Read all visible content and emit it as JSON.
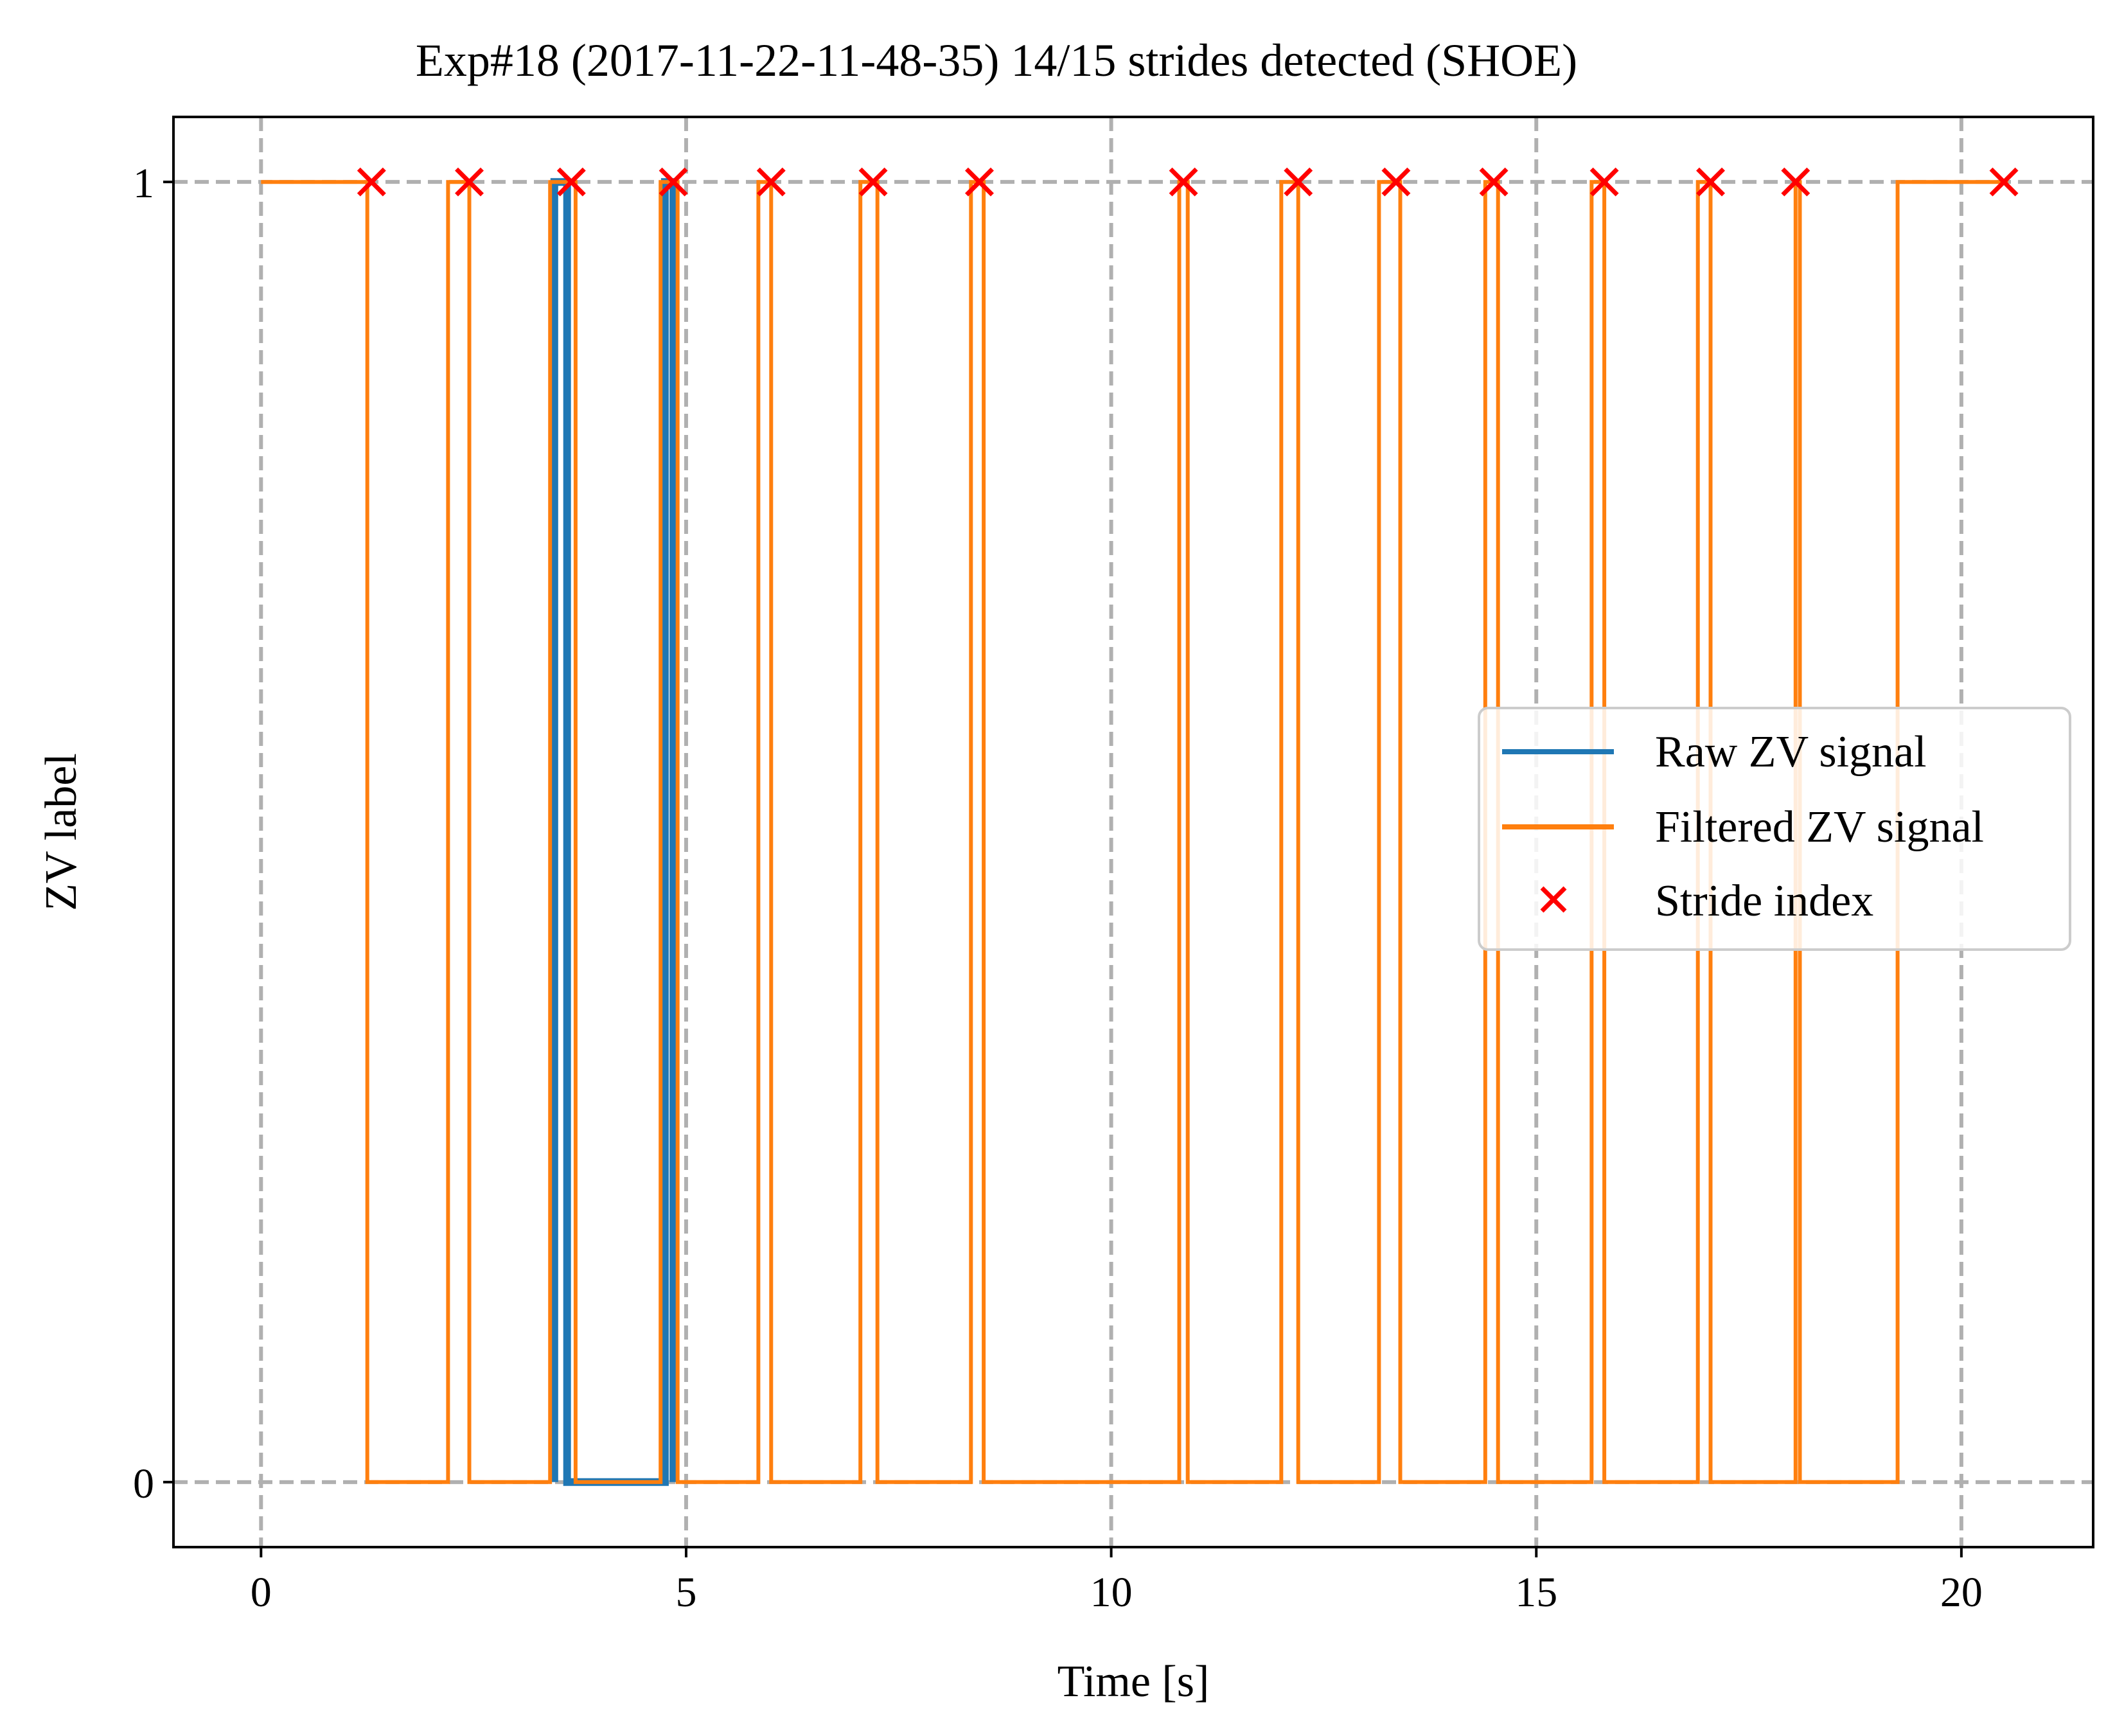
{
  "chart_data": {
    "type": "line",
    "title": "Exp#18 (2017-11-22-11-48-35) 14/15 strides detected (SHOE)",
    "xlabel": "Time [s]",
    "ylabel": "ZV label",
    "xlim": [
      -1.03,
      21.55
    ],
    "ylim": [
      -0.05,
      1.05
    ],
    "x_ticks": [
      0,
      5,
      10,
      15,
      20
    ],
    "x_tick_labels": [
      "0",
      "5",
      "10",
      "15",
      "20"
    ],
    "y_ticks": [
      0,
      1
    ],
    "y_tick_labels": [
      "0",
      "1"
    ],
    "grid": true,
    "grid_style": "dashed",
    "legend_position": "center-right",
    "series": [
      {
        "name": "Raw ZV signal",
        "kind": "step",
        "color": "#1f77b4",
        "points": [
          [
            3.45,
            0
          ],
          [
            3.45,
            1
          ],
          [
            3.6,
            1
          ],
          [
            3.6,
            0
          ],
          [
            4.75,
            0
          ],
          [
            4.75,
            1
          ],
          [
            4.85,
            1
          ],
          [
            4.85,
            0
          ]
        ]
      },
      {
        "name": "Filtered ZV signal",
        "kind": "step",
        "color": "#ff7f0e",
        "points": [
          [
            0,
            1
          ],
          [
            1.25,
            1
          ],
          [
            1.25,
            0
          ],
          [
            2.2,
            0
          ],
          [
            2.2,
            1
          ],
          [
            2.45,
            1
          ],
          [
            2.45,
            0
          ],
          [
            3.4,
            0
          ],
          [
            3.4,
            1
          ],
          [
            3.7,
            1
          ],
          [
            3.7,
            0
          ],
          [
            4.7,
            0
          ],
          [
            4.7,
            1
          ],
          [
            4.9,
            1
          ],
          [
            4.9,
            0
          ],
          [
            5.85,
            0
          ],
          [
            5.85,
            1
          ],
          [
            6.0,
            1
          ],
          [
            6.0,
            0
          ],
          [
            7.05,
            0
          ],
          [
            7.05,
            1
          ],
          [
            7.25,
            1
          ],
          [
            7.25,
            0
          ],
          [
            8.35,
            0
          ],
          [
            8.35,
            1
          ],
          [
            8.5,
            1
          ],
          [
            8.5,
            0
          ],
          [
            10.8,
            0
          ],
          [
            10.8,
            1
          ],
          [
            10.9,
            1
          ],
          [
            10.9,
            0
          ],
          [
            12.0,
            0
          ],
          [
            12.0,
            1
          ],
          [
            12.2,
            1
          ],
          [
            12.2,
            0
          ],
          [
            13.15,
            0
          ],
          [
            13.15,
            1
          ],
          [
            13.4,
            1
          ],
          [
            13.4,
            0
          ],
          [
            14.4,
            0
          ],
          [
            14.4,
            1
          ],
          [
            14.55,
            1
          ],
          [
            14.55,
            0
          ],
          [
            15.65,
            0
          ],
          [
            15.65,
            1
          ],
          [
            15.8,
            1
          ],
          [
            15.8,
            0
          ],
          [
            16.9,
            0
          ],
          [
            16.9,
            1
          ],
          [
            17.05,
            1
          ],
          [
            17.05,
            0
          ],
          [
            18.05,
            0
          ],
          [
            18.05,
            1
          ],
          [
            18.1,
            1
          ],
          [
            18.1,
            0
          ],
          [
            19.25,
            0
          ],
          [
            19.25,
            1
          ],
          [
            20.55,
            1
          ]
        ]
      },
      {
        "name": "Stride index",
        "kind": "scatter",
        "marker": "x",
        "color": "#ff0000",
        "x": [
          1.3,
          2.45,
          3.65,
          4.85,
          6.0,
          7.2,
          8.45,
          10.85,
          12.2,
          13.35,
          14.5,
          15.8,
          17.05,
          18.05,
          20.5
        ],
        "y": [
          1,
          1,
          1,
          1,
          1,
          1,
          1,
          1,
          1,
          1,
          1,
          1,
          1,
          1,
          1
        ]
      }
    ]
  }
}
